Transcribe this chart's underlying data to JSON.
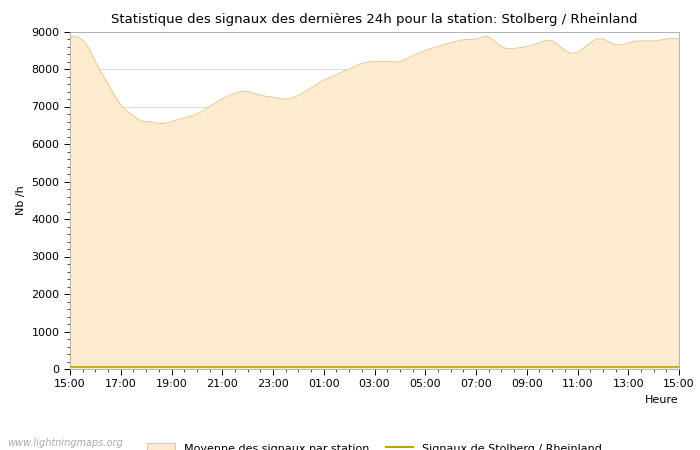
{
  "title": "Statistique des signaux des dernières 24h pour la station: Stolberg / Rheinland",
  "xlabel": "Heure",
  "ylabel": "Nb /h",
  "xlim_labels": [
    "15:00",
    "17:00",
    "19:00",
    "21:00",
    "23:00",
    "01:00",
    "03:00",
    "05:00",
    "07:00",
    "09:00",
    "11:00",
    "13:00",
    "15:00"
  ],
  "ylim": [
    0,
    9000
  ],
  "yticks": [
    0,
    1000,
    2000,
    3000,
    4000,
    5000,
    6000,
    7000,
    8000,
    9000
  ],
  "fill_color": "#FDEBD0",
  "fill_edge_color": "#E8C88A",
  "line_color": "#C8A000",
  "bg_color": "#FFFFFF",
  "grid_color": "#CCCCCC",
  "watermark": "www.lightningmaps.org",
  "legend_fill_label": "Moyenne des signaux par station",
  "legend_line_label": "Signaux de Stolberg / Rheinland",
  "key_x": [
    0,
    0.3,
    0.6,
    1.0,
    1.5,
    2.0,
    2.5,
    2.8,
    3.0,
    3.3,
    3.5,
    4.0,
    4.5,
    5.0,
    5.5,
    6.0,
    6.5,
    7.0,
    7.5,
    8.0,
    8.5,
    9.0,
    9.5,
    10.0,
    10.5,
    11.0,
    11.5,
    12.0,
    12.5,
    13.0,
    13.5,
    14.0,
    14.5,
    15.0,
    15.5,
    16.0,
    16.5,
    17.0,
    17.5,
    18.0,
    18.5,
    19.0,
    19.5,
    20.0,
    20.5,
    21.0,
    21.5,
    22.0,
    22.5,
    23.0,
    23.5,
    24.0
  ],
  "key_y_mean": [
    8900,
    8850,
    8700,
    8200,
    7600,
    7050,
    6750,
    6620,
    6600,
    6580,
    6550,
    6600,
    6700,
    6800,
    7000,
    7200,
    7350,
    7400,
    7300,
    7250,
    7200,
    7300,
    7500,
    7700,
    7850,
    8000,
    8150,
    8200,
    8200,
    8200,
    8350,
    8500,
    8600,
    8700,
    8780,
    8800,
    8850,
    8600,
    8550,
    8600,
    8700,
    8750,
    8500,
    8450,
    8700,
    8800,
    8650,
    8700,
    8750,
    8750,
    8800,
    8800
  ],
  "key_y_station": [
    50,
    50,
    50,
    50,
    50,
    50,
    50,
    50,
    50,
    50,
    50,
    50,
    50,
    50,
    50,
    50,
    50,
    50,
    50,
    50,
    50,
    50,
    50,
    50,
    50,
    50,
    50,
    50,
    50,
    50,
    50,
    50,
    50,
    50,
    50,
    50,
    50,
    50,
    50,
    50,
    50,
    50,
    50,
    50,
    50,
    50,
    50,
    50,
    50,
    50,
    50,
    50
  ],
  "title_fontsize": 9.5,
  "axis_fontsize": 8,
  "ylabel_fontsize": 8,
  "watermark_fontsize": 7
}
